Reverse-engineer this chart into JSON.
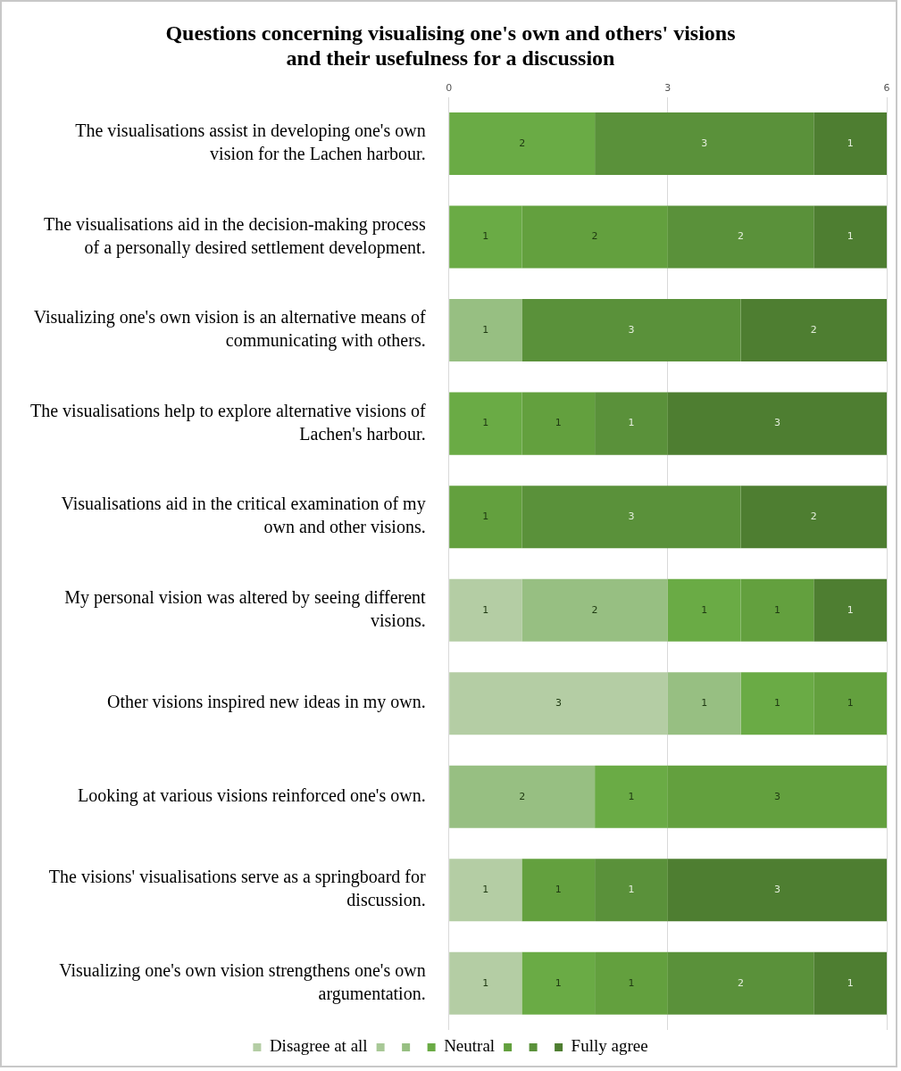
{
  "chart_data": {
    "type": "bar",
    "orientation": "horizontal",
    "stacked": true,
    "title": "Questions concerning visualising one's own and others' visions and their usefulness for a discussion",
    "categories": [
      "The visualisations assist in developing one's own vision for the Lachen harbour.",
      "The visualisations aid in the decision-making process of a personally desired settlement development.",
      "Visualizing one's own vision is an alternative means of communicating with others.",
      "The visualisations help to explore alternative visions of Lachen's harbour.",
      "Visualisations aid in the critical examination of my own and other visions.",
      "My personal vision was altered by seeing different visions.",
      "Other visions inspired new ideas in my own.",
      "Looking at various visions reinforced one's own.",
      "The visions' visualisations serve as a springboard for discussion.",
      "Visualizing one's own vision strengthens one's own argumentation."
    ],
    "series": [
      {
        "name": "Disagree at all",
        "color": "#b4cda4",
        "values": [
          null,
          null,
          null,
          null,
          null,
          1,
          3,
          null,
          1,
          1
        ]
      },
      {
        "color": "#a8c896",
        "values": [
          null,
          null,
          null,
          null,
          null,
          null,
          null,
          null,
          null,
          null
        ]
      },
      {
        "color": "#97bf82",
        "values": [
          null,
          null,
          1,
          null,
          null,
          2,
          1,
          2,
          null,
          null
        ]
      },
      {
        "name": "Neutral",
        "color": "#6aab45",
        "values": [
          2,
          1,
          null,
          1,
          null,
          1,
          1,
          1,
          null,
          1
        ]
      },
      {
        "color": "#63a03e",
        "values": [
          null,
          2,
          null,
          1,
          1,
          1,
          1,
          3,
          1,
          1
        ]
      },
      {
        "color": "#5a913a",
        "values": [
          3,
          2,
          3,
          1,
          3,
          null,
          null,
          null,
          1,
          2
        ]
      },
      {
        "name": "Fully agree",
        "color": "#4e7e31",
        "values": [
          1,
          1,
          2,
          3,
          2,
          1,
          null,
          null,
          3,
          1
        ]
      }
    ],
    "xlim": [
      0,
      6
    ],
    "xticks": [
      0,
      3,
      6
    ],
    "grid": "x",
    "legend": "bottom",
    "data_labels": true
  }
}
